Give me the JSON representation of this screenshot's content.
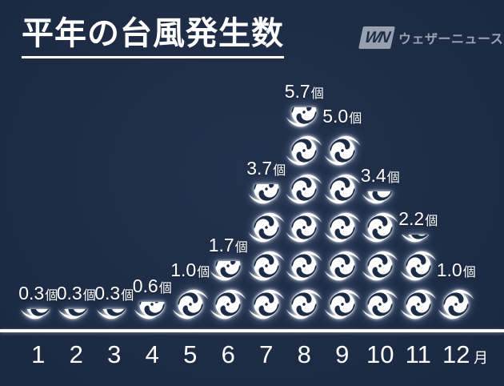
{
  "header": {
    "title": "平年の台風発生数"
  },
  "logo": {
    "mark": "WN",
    "name": "ウェザーニュース"
  },
  "axis": {
    "month_suffix": "月"
  },
  "chart_data": {
    "type": "pictogram-bar",
    "title": "平年の台風発生数",
    "icon": "typhoon-icon",
    "icon_represents": 1,
    "unit": "個",
    "xlabel": "月",
    "categories": [
      "1",
      "2",
      "3",
      "4",
      "5",
      "6",
      "7",
      "8",
      "9",
      "10",
      "11",
      "12"
    ],
    "values": [
      0.3,
      0.3,
      0.3,
      0.6,
      1.0,
      1.7,
      3.7,
      5.7,
      5.0,
      3.4,
      2.2,
      1.0
    ],
    "value_labels": [
      "0.3個",
      "0.3個",
      "0.3個",
      "0.6個",
      "1.0個",
      "1.7個",
      "3.7個",
      "5.7個",
      "5.0個",
      "3.4個",
      "2.2個",
      "1.0個"
    ],
    "legend_position": "none",
    "grid": false
  },
  "colors": {
    "background": "#1c2b46",
    "icon": "#ffffff",
    "text": "#ffffff",
    "logo_gray": "#97a0ae"
  }
}
